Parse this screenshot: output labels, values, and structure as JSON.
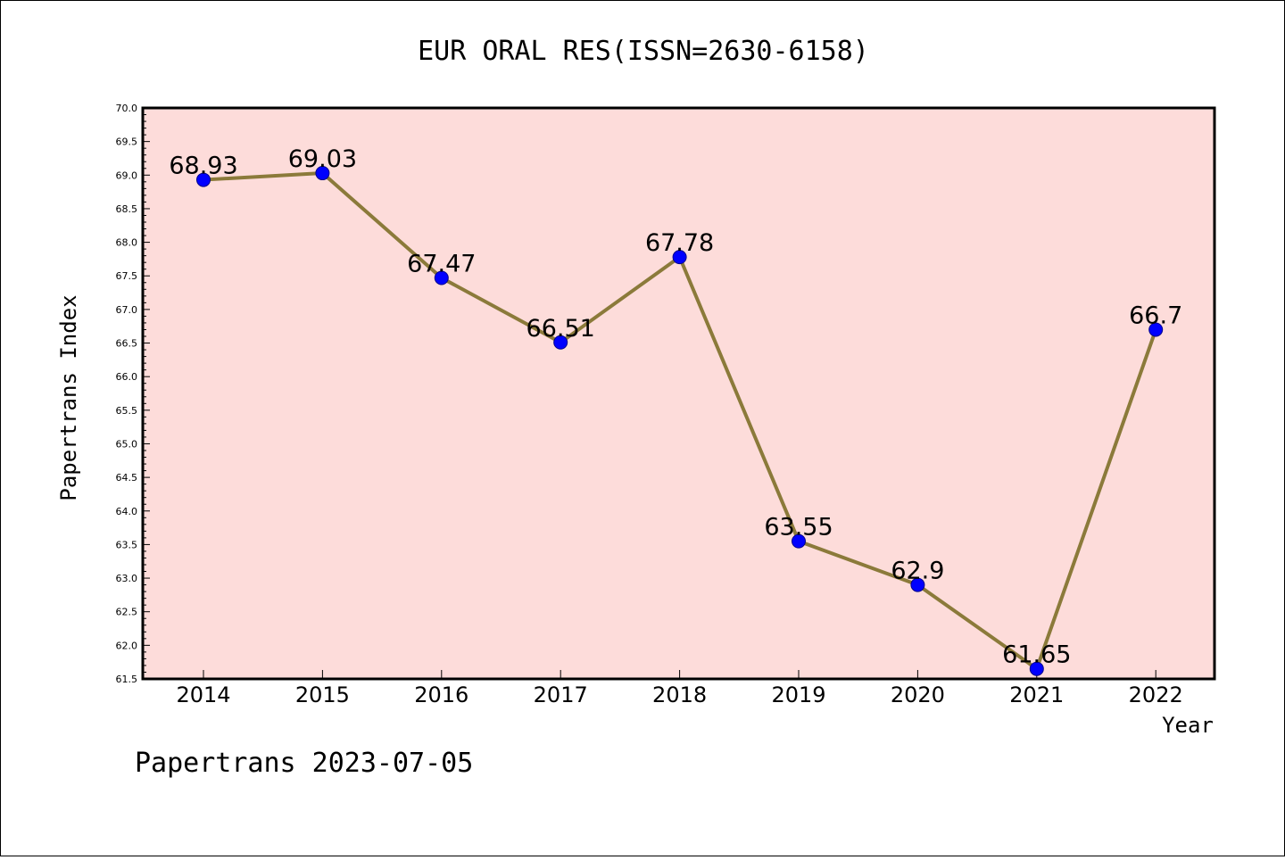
{
  "chart_data": {
    "type": "line",
    "title": "EUR ORAL RES(ISSN=2630-6158)",
    "xlabel": "Year",
    "ylabel": "Papertrans Index",
    "categories": [
      "2014",
      "2015",
      "2016",
      "2017",
      "2018",
      "2019",
      "2020",
      "2021",
      "2022"
    ],
    "series": [
      {
        "values": [
          68.93,
          69.03,
          67.47,
          66.51,
          67.78,
          63.55,
          62.9,
          61.65,
          66.7
        ],
        "data_labels": [
          "68.93",
          "69.03",
          "67.47",
          "66.51",
          "67.78",
          "63.55",
          "62.9",
          "61.65",
          "66.7"
        ]
      }
    ],
    "ylim": [
      61.5,
      70.0
    ],
    "y_ticks": [
      "61.5",
      "62.0",
      "62.5",
      "63.0",
      "63.5",
      "64.0",
      "64.5",
      "65.0",
      "65.5",
      "66.0",
      "66.5",
      "67.0",
      "67.5",
      "68.0",
      "68.5",
      "69.0",
      "69.5",
      "70.0"
    ],
    "grid": false,
    "colors": {
      "plot_background": "#fddcda",
      "line": "#8b7a3a",
      "marker": "#0000ff"
    }
  },
  "footer": "Papertrans 2023-07-05"
}
